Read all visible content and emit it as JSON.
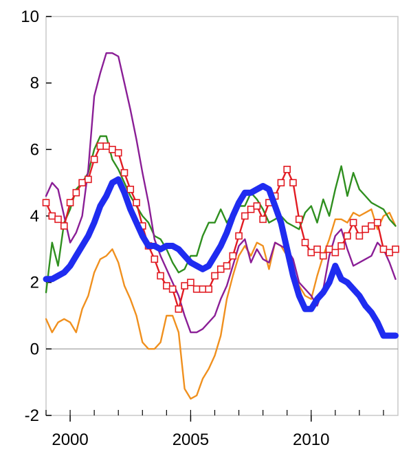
{
  "chart_data": {
    "type": "line",
    "title": "",
    "xlabel": "",
    "ylabel": "",
    "xlim": [
      1999.0,
      2013.6
    ],
    "ylim": [
      -2,
      10
    ],
    "x_ticks": [
      2000,
      2005,
      2010
    ],
    "x_tick_labels": [
      "2000",
      "2005",
      "2010"
    ],
    "y_ticks": [
      -2,
      0,
      2,
      4,
      6,
      8,
      10
    ],
    "y_tick_labels": [
      "-2",
      "0",
      "2",
      "4",
      "6",
      "8",
      "10"
    ],
    "zero_line": true,
    "grid": false,
    "legend": "none",
    "series": [
      {
        "color": "#f0901e",
        "style": "line",
        "x": [
          1999.0,
          1999.25,
          1999.5,
          1999.75,
          2000.0,
          2000.25,
          2000.5,
          2000.75,
          2001.0,
          2001.25,
          2001.5,
          2001.75,
          2002.0,
          2002.25,
          2002.5,
          2002.75,
          2003.0,
          2003.25,
          2003.5,
          2003.75,
          2004.0,
          2004.25,
          2004.5,
          2004.75,
          2005.0,
          2005.25,
          2005.5,
          2005.75,
          2006.0,
          2006.25,
          2006.5,
          2006.75,
          2007.0,
          2007.25,
          2007.5,
          2007.75,
          2008.0,
          2008.25,
          2008.5,
          2008.75,
          2009.0,
          2009.25,
          2009.5,
          2009.75,
          2010.0,
          2010.25,
          2010.5,
          2010.75,
          2011.0,
          2011.25,
          2011.5,
          2011.75,
          2012.0,
          2012.25,
          2012.5,
          2012.75,
          2013.0,
          2013.25,
          2013.5
        ],
        "y": [
          0.9,
          0.5,
          0.8,
          0.9,
          0.8,
          0.5,
          1.2,
          1.6,
          2.3,
          2.7,
          2.8,
          3.0,
          2.6,
          1.9,
          1.5,
          1.0,
          0.2,
          0.0,
          0.0,
          0.2,
          1.0,
          1.0,
          0.5,
          -1.2,
          -1.5,
          -1.4,
          -0.9,
          -0.6,
          -0.2,
          0.4,
          1.5,
          2.2,
          2.8,
          3.1,
          2.8,
          3.2,
          3.1,
          2.4,
          3.2,
          3.1,
          2.8,
          2.3,
          1.9,
          1.6,
          1.5,
          2.2,
          2.8,
          3.3,
          3.9,
          3.9,
          3.8,
          4.1,
          4.0,
          4.1,
          4.2,
          3.6,
          4.0,
          4.1,
          3.7
        ]
      },
      {
        "color": "#2f8f1f",
        "style": "line",
        "x": [
          1999.0,
          1999.25,
          1999.5,
          1999.75,
          2000.0,
          2000.25,
          2000.5,
          2000.75,
          2001.0,
          2001.25,
          2001.5,
          2001.75,
          2002.0,
          2002.25,
          2002.5,
          2002.75,
          2003.0,
          2003.25,
          2003.5,
          2003.75,
          2004.0,
          2004.25,
          2004.5,
          2004.75,
          2005.0,
          2005.25,
          2005.5,
          2005.75,
          2006.0,
          2006.25,
          2006.5,
          2006.75,
          2007.0,
          2007.25,
          2007.5,
          2007.75,
          2008.0,
          2008.25,
          2008.5,
          2008.75,
          2009.0,
          2009.25,
          2009.5,
          2009.75,
          2010.0,
          2010.25,
          2010.5,
          2010.75,
          2011.0,
          2011.25,
          2011.5,
          2011.75,
          2012.0,
          2012.25,
          2012.5,
          2012.75,
          2013.0,
          2013.25,
          2013.5
        ],
        "y": [
          1.7,
          3.2,
          2.5,
          3.8,
          4.2,
          4.8,
          5.0,
          5.3,
          6.0,
          6.4,
          6.4,
          5.7,
          5.4,
          5.0,
          4.6,
          4.3,
          4.0,
          3.8,
          3.4,
          3.3,
          3.0,
          2.6,
          2.3,
          2.4,
          2.8,
          2.8,
          3.4,
          3.8,
          3.8,
          4.2,
          3.8,
          4.1,
          4.3,
          4.3,
          4.7,
          4.5,
          4.2,
          3.8,
          3.9,
          4.0,
          3.8,
          3.7,
          3.6,
          4.1,
          4.3,
          3.8,
          4.5,
          4.0,
          4.8,
          5.5,
          4.6,
          5.3,
          4.8,
          4.6,
          4.4,
          4.3,
          4.2,
          3.9,
          3.7
        ]
      },
      {
        "color": "#8a1e96",
        "style": "line",
        "x": [
          1999.0,
          1999.25,
          1999.5,
          1999.75,
          2000.0,
          2000.25,
          2000.5,
          2000.75,
          2001.0,
          2001.25,
          2001.5,
          2001.75,
          2002.0,
          2002.25,
          2002.5,
          2002.75,
          2003.0,
          2003.25,
          2003.5,
          2003.75,
          2004.0,
          2004.25,
          2004.5,
          2004.75,
          2005.0,
          2005.25,
          2005.5,
          2005.75,
          2006.0,
          2006.25,
          2006.5,
          2006.75,
          2007.0,
          2007.25,
          2007.5,
          2007.75,
          2008.0,
          2008.25,
          2008.5,
          2008.75,
          2009.0,
          2009.25,
          2009.5,
          2009.75,
          2010.0,
          2010.25,
          2010.5,
          2010.75,
          2011.0,
          2011.25,
          2011.5,
          2011.75,
          2012.0,
          2012.25,
          2012.5,
          2012.75,
          2013.0,
          2013.25,
          2013.5
        ],
        "y": [
          4.6,
          5.0,
          4.8,
          4.0,
          3.2,
          3.5,
          4.0,
          5.4,
          7.6,
          8.3,
          8.9,
          8.9,
          8.8,
          8.0,
          7.2,
          6.3,
          5.3,
          4.4,
          3.3,
          2.8,
          2.4,
          2.0,
          1.6,
          1.0,
          0.5,
          0.5,
          0.6,
          0.8,
          1.0,
          1.5,
          1.9,
          2.5,
          3.1,
          3.3,
          2.6,
          3.0,
          2.7,
          2.6,
          3.2,
          3.1,
          3.0,
          2.7,
          2.0,
          1.8,
          1.6,
          1.3,
          1.8,
          2.8,
          3.4,
          3.6,
          3.0,
          2.5,
          2.6,
          2.7,
          2.8,
          3.2,
          3.0,
          2.6,
          2.1
        ]
      },
      {
        "color": "#e11b22",
        "style": "line-square-markers",
        "x": [
          1999.0,
          1999.25,
          1999.5,
          1999.75,
          2000.0,
          2000.25,
          2000.5,
          2000.75,
          2001.0,
          2001.25,
          2001.5,
          2001.75,
          2002.0,
          2002.25,
          2002.5,
          2002.75,
          2003.0,
          2003.25,
          2003.5,
          2003.75,
          2004.0,
          2004.25,
          2004.5,
          2004.75,
          2005.0,
          2005.25,
          2005.5,
          2005.75,
          2006.0,
          2006.25,
          2006.5,
          2006.75,
          2007.0,
          2007.25,
          2007.5,
          2007.75,
          2008.0,
          2008.25,
          2008.5,
          2008.75,
          2009.0,
          2009.25,
          2009.5,
          2009.75,
          2010.0,
          2010.25,
          2010.5,
          2010.75,
          2011.0,
          2011.25,
          2011.5,
          2011.75,
          2012.0,
          2012.25,
          2012.5,
          2012.75,
          2013.0,
          2013.25,
          2013.5
        ],
        "y": [
          4.4,
          4.0,
          3.9,
          3.7,
          4.4,
          4.7,
          5.0,
          5.1,
          5.7,
          6.1,
          6.1,
          6.0,
          5.9,
          5.3,
          4.8,
          4.4,
          3.7,
          3.1,
          2.7,
          2.2,
          1.9,
          1.8,
          1.2,
          1.9,
          2.0,
          1.8,
          1.8,
          1.8,
          2.2,
          2.4,
          2.5,
          2.8,
          3.4,
          4.0,
          4.2,
          4.3,
          3.9,
          4.4,
          4.6,
          5.0,
          5.4,
          5.0,
          3.9,
          3.2,
          2.9,
          3.0,
          2.8,
          3.0,
          2.9,
          3.1,
          3.4,
          3.8,
          3.4,
          3.6,
          3.7,
          3.8,
          3.0,
          2.9,
          3.0
        ]
      },
      {
        "color": "#1f2cf0",
        "style": "thick-line",
        "x": [
          1999.0,
          1999.25,
          1999.5,
          1999.75,
          2000.0,
          2000.25,
          2000.5,
          2000.75,
          2001.0,
          2001.25,
          2001.5,
          2001.75,
          2002.0,
          2002.25,
          2002.5,
          2002.75,
          2003.0,
          2003.25,
          2003.5,
          2003.75,
          2004.0,
          2004.25,
          2004.5,
          2004.75,
          2005.0,
          2005.25,
          2005.5,
          2005.75,
          2006.0,
          2006.25,
          2006.5,
          2006.75,
          2007.0,
          2007.25,
          2007.5,
          2007.75,
          2008.0,
          2008.25,
          2008.5,
          2008.75,
          2009.0,
          2009.25,
          2009.5,
          2009.75,
          2010.0,
          2010.25,
          2010.5,
          2010.75,
          2011.0,
          2011.25,
          2011.5,
          2011.75,
          2012.0,
          2012.25,
          2012.5,
          2012.75,
          2013.0,
          2013.25,
          2013.5
        ],
        "y": [
          2.1,
          2.1,
          2.2,
          2.3,
          2.5,
          2.8,
          3.1,
          3.4,
          3.8,
          4.3,
          4.6,
          5.0,
          5.1,
          4.7,
          4.2,
          3.8,
          3.4,
          3.1,
          3.1,
          3.0,
          3.1,
          3.1,
          3.0,
          2.8,
          2.6,
          2.5,
          2.4,
          2.5,
          2.8,
          3.1,
          3.5,
          4.0,
          4.4,
          4.7,
          4.7,
          4.8,
          4.9,
          4.8,
          4.3,
          3.8,
          3.0,
          2.2,
          1.6,
          1.2,
          1.2,
          1.5,
          1.7,
          2.0,
          2.5,
          2.1,
          2.0,
          1.8,
          1.6,
          1.3,
          1.1,
          0.8,
          0.4,
          0.4,
          0.4
        ]
      }
    ]
  }
}
